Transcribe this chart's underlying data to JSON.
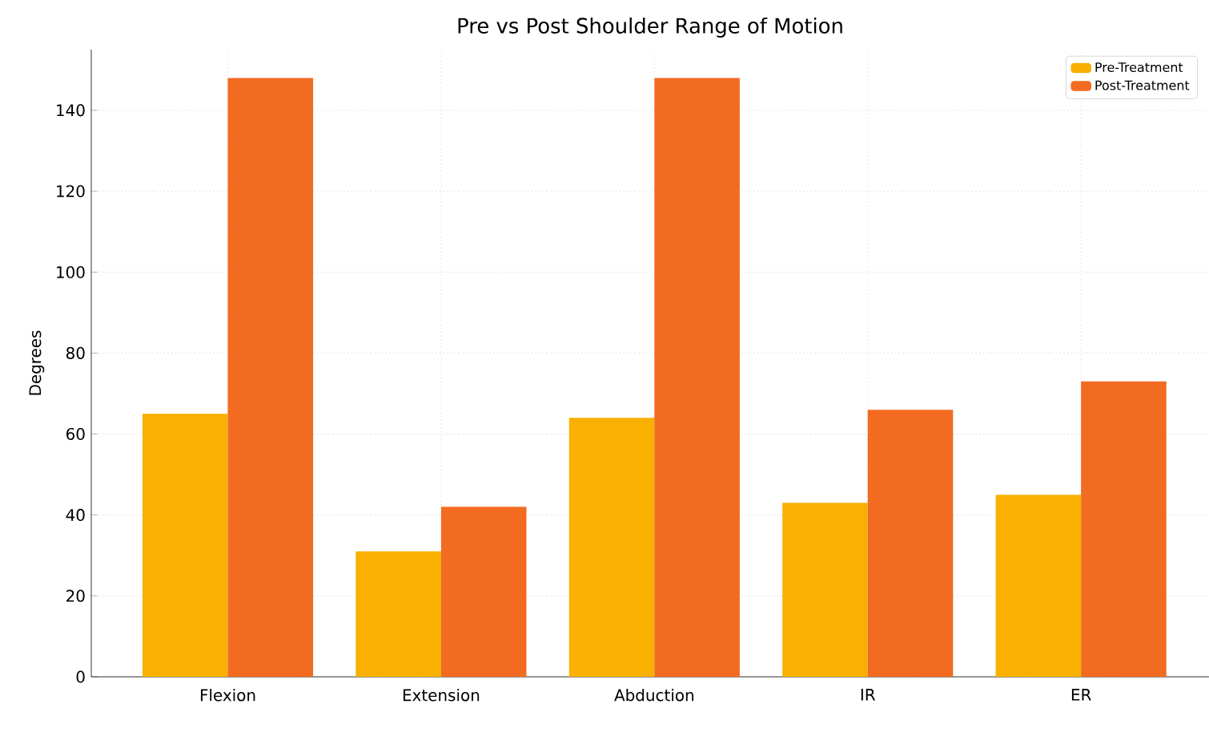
{
  "chart_data": {
    "type": "bar",
    "title": "Pre vs Post Shoulder Range of Motion",
    "ylabel": "Degrees",
    "categories": [
      "Flexion",
      "Extension",
      "Abduction",
      "IR",
      "ER"
    ],
    "series": [
      {
        "name": "Pre-Treatment",
        "color": "#f9b000",
        "values": [
          65,
          31,
          64,
          43,
          45
        ]
      },
      {
        "name": "Post-Treatment",
        "color": "#f26b21",
        "values": [
          148,
          42,
          148,
          66,
          73
        ]
      }
    ],
    "ylim": [
      0,
      155
    ],
    "yticks": [
      0,
      20,
      40,
      60,
      80,
      100,
      120,
      140
    ],
    "grid": true,
    "legend": "top right"
  }
}
